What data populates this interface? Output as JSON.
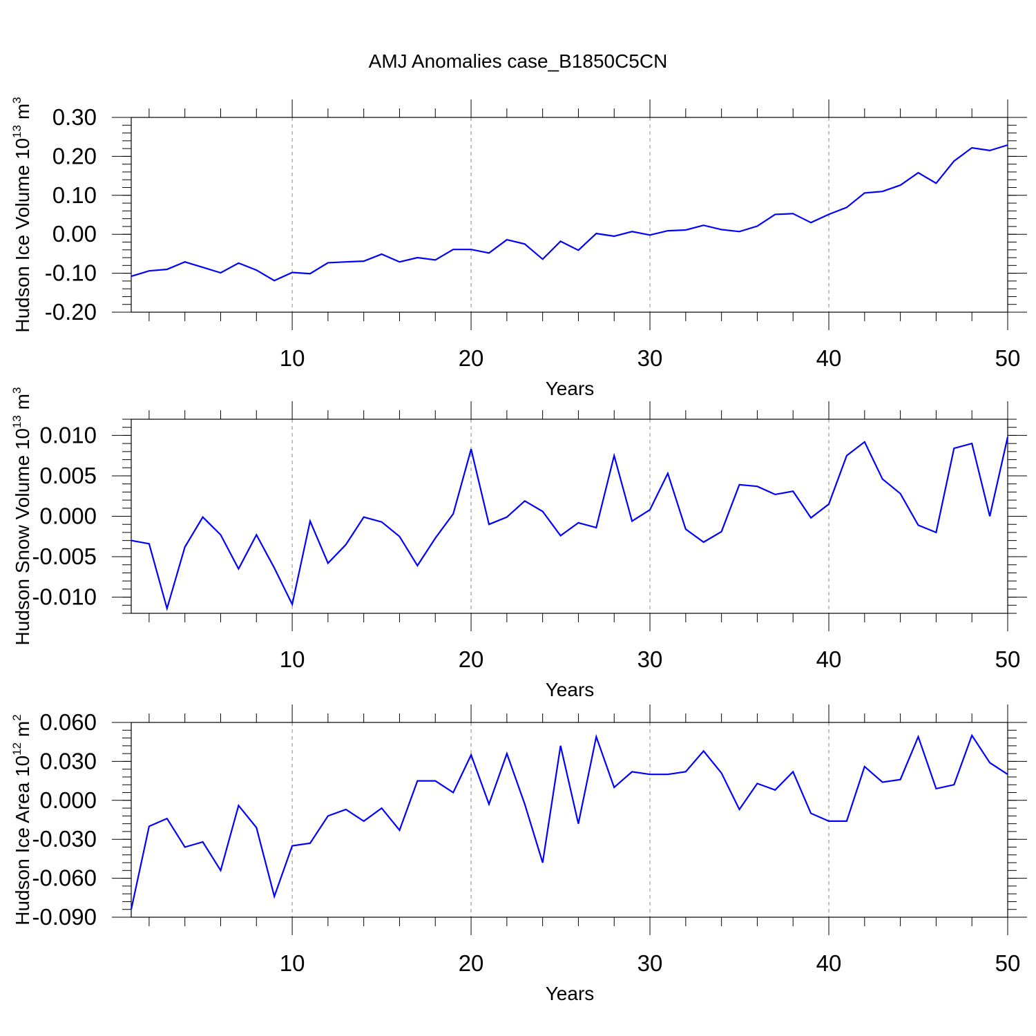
{
  "chart_data": [
    {
      "type": "line",
      "title": "AMJ Anomalies case_B1850C5CN",
      "xlabel": "Years",
      "ylabel": {
        "text": "Hudson Ice Volume 10",
        "exp": "13",
        "unit": " m",
        "unit_exp": "3"
      },
      "xlim": [
        1,
        50
      ],
      "ylim": [
        -0.2,
        0.3
      ],
      "xticks": [
        10,
        20,
        30,
        40,
        50
      ],
      "xtick_labels": [
        "10",
        "20",
        "30",
        "40",
        "50"
      ],
      "yticks": [
        -0.2,
        -0.1,
        0.0,
        0.1,
        0.2,
        0.3
      ],
      "ytick_labels": [
        "-0.20",
        "-0.10",
        "0.00",
        "0.10",
        "0.20",
        "0.30"
      ],
      "grid": "dashed vertical lines at major x ticks",
      "color": "#0000ff",
      "x": [
        1,
        2,
        3,
        4,
        5,
        6,
        7,
        8,
        9,
        10,
        11,
        12,
        13,
        14,
        15,
        16,
        17,
        18,
        19,
        20,
        21,
        22,
        23,
        24,
        25,
        26,
        27,
        28,
        29,
        30,
        31,
        32,
        33,
        34,
        35,
        36,
        37,
        38,
        39,
        40,
        41,
        42,
        43,
        44,
        45,
        46,
        47,
        48,
        49,
        50
      ],
      "y": [
        -0.108,
        -0.094,
        -0.09,
        -0.071,
        -0.085,
        -0.099,
        -0.074,
        -0.092,
        -0.119,
        -0.098,
        -0.101,
        -0.073,
        -0.071,
        -0.069,
        -0.051,
        -0.071,
        -0.06,
        -0.066,
        -0.039,
        -0.039,
        -0.048,
        -0.014,
        -0.025,
        -0.064,
        -0.018,
        -0.041,
        0.002,
        -0.005,
        0.007,
        -0.002,
        0.009,
        0.011,
        0.023,
        0.012,
        0.007,
        0.021,
        0.051,
        0.053,
        0.03,
        0.051,
        0.069,
        0.106,
        0.11,
        0.126,
        0.158,
        0.131,
        0.188,
        0.222,
        0.215,
        0.229
      ]
    },
    {
      "type": "line",
      "xlabel": "Years",
      "ylabel": {
        "text": "Hudson Snow Volume 10",
        "exp": "13",
        "unit": " m",
        "unit_exp": "3"
      },
      "xlim": [
        1,
        50
      ],
      "ylim": [
        -0.012,
        0.012
      ],
      "xticks": [
        10,
        20,
        30,
        40,
        50
      ],
      "xtick_labels": [
        "10",
        "20",
        "30",
        "40",
        "50"
      ],
      "yticks": [
        -0.01,
        -0.005,
        0.0,
        0.005,
        0.01
      ],
      "ytick_labels": [
        "-0.010",
        "-0.005",
        "0.000",
        "0.005",
        "0.010"
      ],
      "grid": "dashed vertical lines at major x ticks",
      "color": "#0000ff",
      "x": [
        1,
        2,
        3,
        4,
        5,
        6,
        7,
        8,
        9,
        10,
        11,
        12,
        13,
        14,
        15,
        16,
        17,
        18,
        19,
        20,
        21,
        22,
        23,
        24,
        25,
        26,
        27,
        28,
        29,
        30,
        31,
        32,
        33,
        34,
        35,
        36,
        37,
        38,
        39,
        40,
        41,
        42,
        43,
        44,
        45,
        46,
        47,
        48,
        49,
        50
      ],
      "y": [
        -0.003,
        -0.0034,
        -0.0114,
        -0.0038,
        -0.0001,
        -0.0023,
        -0.0065,
        -0.0023,
        -0.0064,
        -0.0109,
        -0.0006,
        -0.0058,
        -0.0035,
        -0.0001,
        -0.0007,
        -0.0025,
        -0.0061,
        -0.0027,
        0.0003,
        0.0083,
        -0.001,
        -0.0001,
        0.0019,
        0.0006,
        -0.0024,
        -0.0008,
        -0.0014,
        0.0075,
        -0.0006,
        0.0008,
        0.0053,
        -0.0016,
        -0.0032,
        -0.0019,
        0.0039,
        0.0037,
        0.0027,
        0.0031,
        -0.0002,
        0.0015,
        0.0075,
        0.0092,
        0.0046,
        0.0028,
        -0.0011,
        -0.002,
        0.0084,
        0.009,
        0.0,
        0.0098
      ]
    },
    {
      "type": "line",
      "xlabel": "Years",
      "ylabel": {
        "text": "Hudson Ice Area 10",
        "exp": "12",
        "unit": " m",
        "unit_exp": "2"
      },
      "xlim": [
        1,
        50
      ],
      "ylim": [
        -0.09,
        0.06
      ],
      "xticks": [
        10,
        20,
        30,
        40,
        50
      ],
      "xtick_labels": [
        "10",
        "20",
        "30",
        "40",
        "50"
      ],
      "yticks": [
        -0.09,
        -0.06,
        -0.03,
        0.0,
        0.03,
        0.06
      ],
      "ytick_labels": [
        "-0.090",
        "-0.060",
        "-0.030",
        "0.000",
        "0.030",
        "0.060"
      ],
      "grid": "dashed vertical lines at major x ticks",
      "color": "#0000ff",
      "x": [
        1,
        2,
        3,
        4,
        5,
        6,
        7,
        8,
        9,
        10,
        11,
        12,
        13,
        14,
        15,
        16,
        17,
        18,
        19,
        20,
        21,
        22,
        23,
        24,
        25,
        26,
        27,
        28,
        29,
        30,
        31,
        32,
        33,
        34,
        35,
        36,
        37,
        38,
        39,
        40,
        41,
        42,
        43,
        44,
        45,
        46,
        47,
        48,
        49,
        50
      ],
      "y": [
        -0.084,
        -0.02,
        -0.014,
        -0.036,
        -0.032,
        -0.054,
        -0.004,
        -0.021,
        -0.074,
        -0.035,
        -0.033,
        -0.012,
        -0.007,
        -0.016,
        -0.006,
        -0.023,
        0.015,
        0.015,
        0.006,
        0.035,
        -0.003,
        0.036,
        -0.003,
        -0.048,
        0.042,
        -0.018,
        0.049,
        0.01,
        0.022,
        0.02,
        0.02,
        0.022,
        0.038,
        0.021,
        -0.007,
        0.013,
        0.008,
        0.022,
        -0.01,
        -0.016,
        -0.016,
        0.026,
        0.014,
        0.016,
        0.049,
        0.009,
        0.012,
        0.05,
        0.029,
        0.02
      ]
    }
  ]
}
